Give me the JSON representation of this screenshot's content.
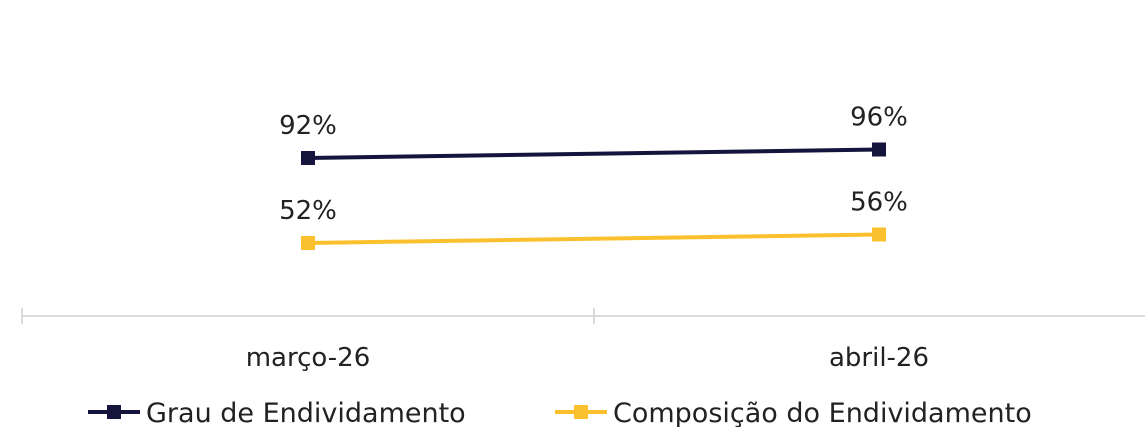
{
  "chart_data": {
    "type": "line",
    "categories": [
      "março-26",
      "abril-26"
    ],
    "series": [
      {
        "name": "Grau de Endividamento",
        "values": [
          92,
          96
        ],
        "labels": [
          "92%",
          "96%"
        ],
        "color": "#14143c"
      },
      {
        "name": "Composição do Endividamento",
        "values": [
          52,
          56
        ],
        "labels": [
          "52%",
          "56%"
        ],
        "color": "#fbc02d"
      }
    ],
    "axis_color": "#d0d0d0",
    "grid": false,
    "legend_position": "bottom"
  }
}
